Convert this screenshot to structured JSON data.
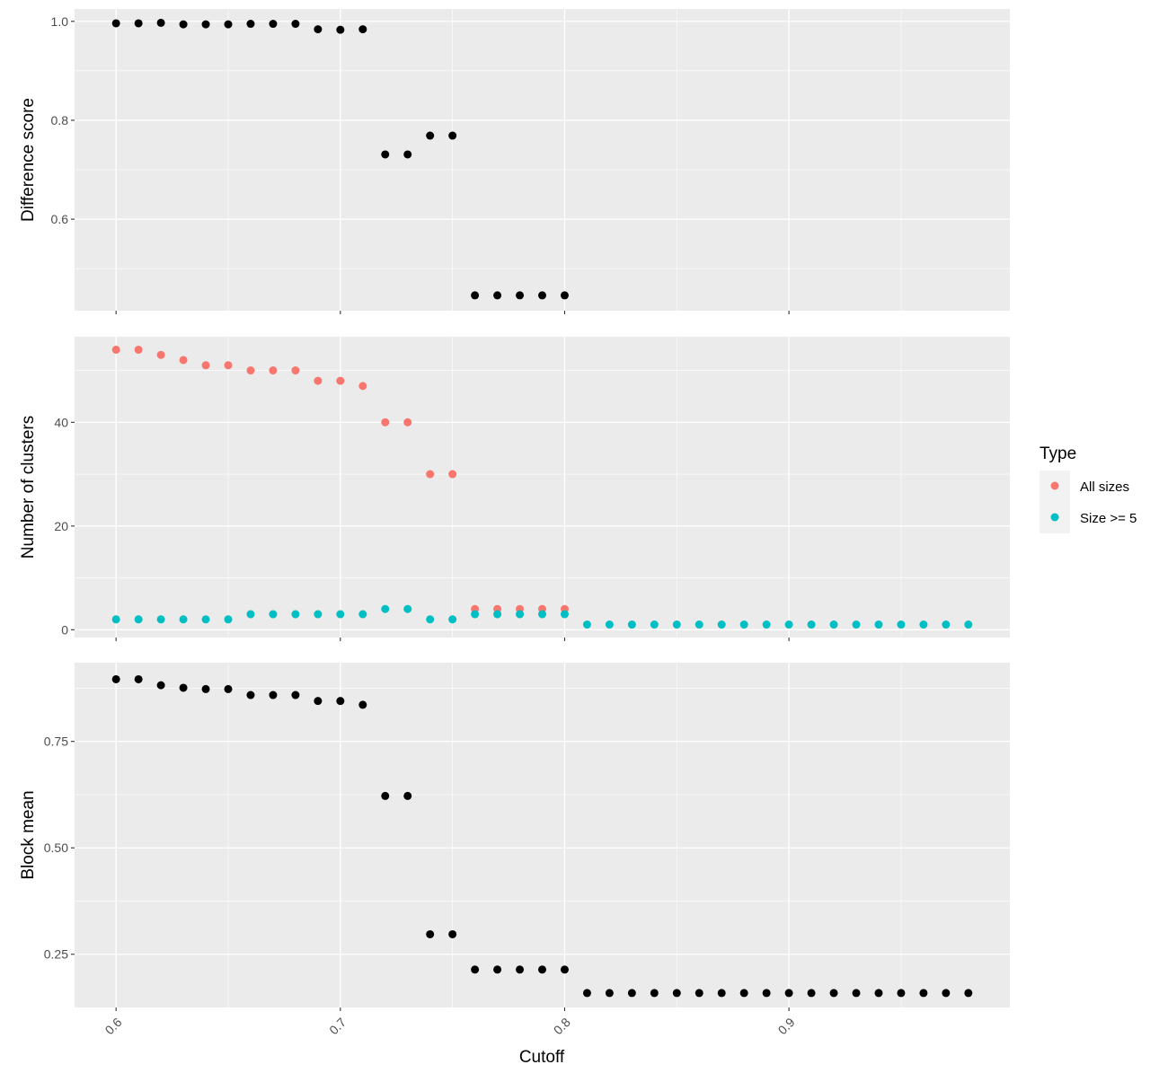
{
  "chart_data": {
    "type": "scatter",
    "xlabel": "Cutoff",
    "x_ticks": [
      "0.6",
      "0.7",
      "0.8",
      "0.9"
    ],
    "x_tick_values": [
      0.6,
      0.7,
      0.8,
      0.9
    ],
    "xlim": [
      0.5815,
      0.9985
    ],
    "colors": {
      "panel_bg": "#ebebeb",
      "grid": "#ffffff",
      "points_black": "#000000",
      "all_sizes": "#f8766d",
      "size_ge_5": "#00bfc4"
    },
    "legend": {
      "title": "Type",
      "placement": "right",
      "entries": [
        {
          "label": "All sizes",
          "color": "#f8766d"
        },
        {
          "label": "Size >= 5",
          "color": "#00bfc4"
        }
      ]
    },
    "panels": [
      {
        "ylabel": "Difference score",
        "ylim": [
          0.415,
          1.025
        ],
        "y_ticks": [
          "0.6",
          "0.8",
          "1.0"
        ],
        "y_tick_values": [
          0.6,
          0.8,
          1.0
        ],
        "series": [
          {
            "color": "#000000",
            "x": [
              0.6,
              0.61,
              0.62,
              0.63,
              0.64,
              0.65,
              0.66,
              0.67,
              0.68,
              0.69,
              0.7,
              0.71,
              0.72,
              0.73,
              0.74,
              0.75,
              0.76,
              0.77,
              0.78,
              0.79,
              0.8
            ],
            "y": [
              0.996,
              0.996,
              0.997,
              0.994,
              0.994,
              0.994,
              0.995,
              0.995,
              0.995,
              0.984,
              0.983,
              0.984,
              0.731,
              0.731,
              0.769,
              0.769,
              0.446,
              0.446,
              0.446,
              0.446,
              0.446
            ]
          }
        ]
      },
      {
        "ylabel": "Number of clusters",
        "ylim": [
          -1.5,
          56.5
        ],
        "y_ticks": [
          "0",
          "20",
          "40"
        ],
        "y_tick_values": [
          0,
          20,
          40
        ],
        "series": [
          {
            "name": "All sizes",
            "color": "#f8766d",
            "x": [
              0.6,
              0.61,
              0.62,
              0.63,
              0.64,
              0.65,
              0.66,
              0.67,
              0.68,
              0.69,
              0.7,
              0.71,
              0.72,
              0.73,
              0.74,
              0.75,
              0.76,
              0.77,
              0.78,
              0.79,
              0.8
            ],
            "y": [
              54,
              54,
              53,
              52,
              51,
              51,
              50,
              50,
              50,
              48,
              48,
              47,
              40,
              40,
              30,
              30,
              4,
              4,
              4,
              4,
              4
            ]
          },
          {
            "name": "Size >= 5",
            "color": "#00bfc4",
            "x": [
              0.6,
              0.61,
              0.62,
              0.63,
              0.64,
              0.65,
              0.66,
              0.67,
              0.68,
              0.69,
              0.7,
              0.71,
              0.72,
              0.73,
              0.74,
              0.75,
              0.76,
              0.77,
              0.78,
              0.79,
              0.8,
              0.81,
              0.82,
              0.83,
              0.84,
              0.85,
              0.86,
              0.87,
              0.88,
              0.89,
              0.9,
              0.91,
              0.92,
              0.93,
              0.94,
              0.95,
              0.96,
              0.97,
              0.98
            ],
            "y": [
              2,
              2,
              2,
              2,
              2,
              2,
              3,
              3,
              3,
              3,
              3,
              3,
              4,
              4,
              2,
              2,
              3,
              3,
              3,
              3,
              3,
              1,
              1,
              1,
              1,
              1,
              1,
              1,
              1,
              1,
              1,
              1,
              1,
              1,
              1,
              1,
              1,
              1,
              1
            ]
          }
        ]
      },
      {
        "ylabel": "Block mean",
        "ylim": [
          0.125,
          0.935
        ],
        "y_ticks": [
          "0.25",
          "0.50",
          "0.75"
        ],
        "y_tick_values": [
          0.25,
          0.5,
          0.75
        ],
        "series": [
          {
            "color": "#000000",
            "x": [
              0.6,
              0.61,
              0.62,
              0.63,
              0.64,
              0.65,
              0.66,
              0.67,
              0.68,
              0.69,
              0.7,
              0.71,
              0.72,
              0.73,
              0.74,
              0.75,
              0.76,
              0.77,
              0.78,
              0.79,
              0.8,
              0.81,
              0.82,
              0.83,
              0.84,
              0.85,
              0.86,
              0.87,
              0.88,
              0.89,
              0.9,
              0.91,
              0.92,
              0.93,
              0.94,
              0.95,
              0.96,
              0.97,
              0.98
            ],
            "y": [
              0.896,
              0.896,
              0.882,
              0.876,
              0.873,
              0.873,
              0.859,
              0.859,
              0.859,
              0.845,
              0.845,
              0.836,
              0.622,
              0.622,
              0.297,
              0.297,
              0.214,
              0.214,
              0.214,
              0.214,
              0.214,
              0.159,
              0.159,
              0.159,
              0.159,
              0.159,
              0.159,
              0.159,
              0.159,
              0.159,
              0.159,
              0.159,
              0.159,
              0.159,
              0.159,
              0.159,
              0.159,
              0.159,
              0.159
            ]
          }
        ]
      }
    ]
  }
}
